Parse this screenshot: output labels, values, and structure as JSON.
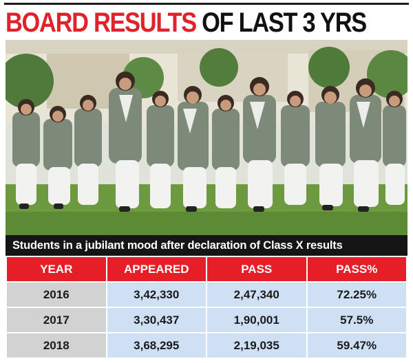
{
  "headline": {
    "red_part": "BOARD RESULTS",
    "black_part": " OF LAST 3 YRS"
  },
  "photo": {
    "icon": "photo-students-celebrating"
  },
  "caption": "Students in a jubilant mood after declaration of Class X results",
  "table": {
    "headers": [
      "YEAR",
      "APPEARED",
      "PASS",
      "PASS%"
    ],
    "rows": [
      [
        "2016",
        "3,42,330",
        "2,47,340",
        "72.25%"
      ],
      [
        "2017",
        "3,30,437",
        "1,90,001",
        "57.5%"
      ],
      [
        "2018",
        "3,68,295",
        "2,19,035",
        "59.47%"
      ]
    ]
  },
  "colors": {
    "accent_red": "#e61e27",
    "header_black": "#111111",
    "year_cell": "#d2d2d2",
    "value_cell": "#cfe0f5"
  }
}
